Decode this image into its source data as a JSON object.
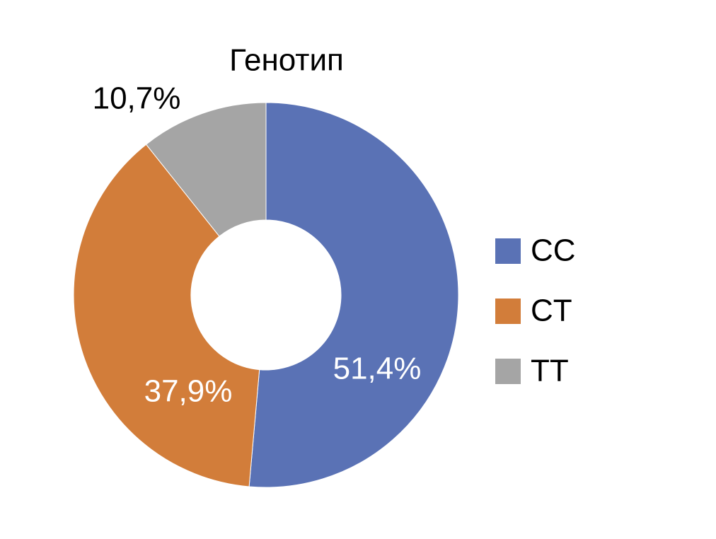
{
  "chart_data": {
    "type": "donut",
    "title": "Генотип",
    "categories": [
      "CC",
      "CT",
      "TT"
    ],
    "values": [
      51.4,
      37.9,
      10.7
    ],
    "value_labels": [
      "51,4%",
      "37,9%",
      "10,7%"
    ],
    "colors": [
      "#5a72b5",
      "#d27d3a",
      "#a5a5a5"
    ],
    "legend": "right"
  }
}
